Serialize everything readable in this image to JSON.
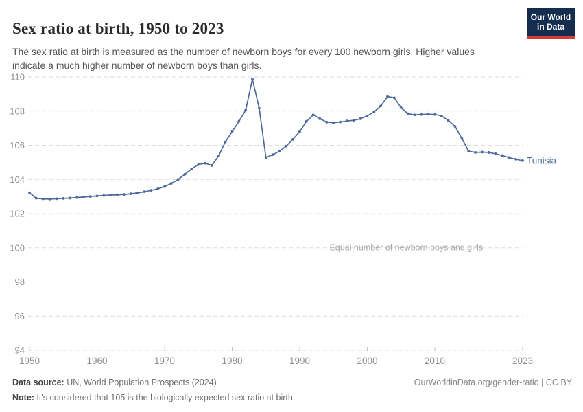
{
  "header": {
    "title": "Sex ratio at birth, 1950 to 2023",
    "subtitle": "The sex ratio at birth is measured as the number of newborn boys for every 100 newborn girls. Higher values indicate a much higher number of newborn boys than girls.",
    "logo": {
      "line1": "Our World",
      "line2": "in Data"
    }
  },
  "colors": {
    "series": "#4C6A9C",
    "logo_bg": "#152D4F",
    "logo_accent": "#D93B3B"
  },
  "chart_data": {
    "type": "line",
    "title": "Sex ratio at birth, 1950 to 2023",
    "xlabel": "",
    "ylabel": "",
    "xlim": [
      1950,
      2023
    ],
    "ylim": [
      94,
      110.5
    ],
    "x_ticks": [
      1950,
      1960,
      1970,
      1980,
      1990,
      2000,
      2010,
      2023
    ],
    "y_ticks": [
      94,
      96,
      98,
      100,
      102,
      104,
      106,
      108,
      110
    ],
    "grid": "horizontal-dashed",
    "annotation": {
      "text": "Equal number of newborn boys and girls",
      "y": 100
    },
    "legend_position": "end-of-line-label",
    "series": [
      {
        "name": "Tunisia",
        "color": "#4C6A9C",
        "x": [
          1950,
          1951,
          1952,
          1953,
          1954,
          1955,
          1956,
          1957,
          1958,
          1959,
          1960,
          1961,
          1962,
          1963,
          1964,
          1965,
          1966,
          1967,
          1968,
          1969,
          1970,
          1971,
          1972,
          1973,
          1974,
          1975,
          1976,
          1977,
          1978,
          1979,
          1980,
          1981,
          1982,
          1983,
          1984,
          1985,
          1986,
          1987,
          1988,
          1989,
          1990,
          1991,
          1992,
          1993,
          1994,
          1995,
          1996,
          1997,
          1998,
          1999,
          2000,
          2001,
          2002,
          2003,
          2004,
          2005,
          2006,
          2007,
          2008,
          2009,
          2010,
          2011,
          2012,
          2013,
          2014,
          2015,
          2016,
          2017,
          2018,
          2019,
          2020,
          2021,
          2022,
          2023
        ],
        "values": [
          103.22,
          102.9,
          102.86,
          102.85,
          102.87,
          102.89,
          102.91,
          102.94,
          102.97,
          103.0,
          103.03,
          103.06,
          103.08,
          103.1,
          103.12,
          103.16,
          103.21,
          103.28,
          103.36,
          103.45,
          103.58,
          103.77,
          104.0,
          104.3,
          104.62,
          104.87,
          104.95,
          104.82,
          105.38,
          106.2,
          106.8,
          107.4,
          108.05,
          109.87,
          108.17,
          105.28,
          105.45,
          105.65,
          105.95,
          106.35,
          106.8,
          107.4,
          107.78,
          107.55,
          107.35,
          107.32,
          107.36,
          107.42,
          107.46,
          107.55,
          107.72,
          107.95,
          108.3,
          108.85,
          108.78,
          108.2,
          107.85,
          107.78,
          107.8,
          107.82,
          107.8,
          107.72,
          107.45,
          107.1,
          106.4,
          105.65,
          105.58,
          105.6,
          105.58,
          105.5,
          105.4,
          105.28,
          105.18,
          105.1
        ]
      }
    ]
  },
  "footer": {
    "source_label": "Data source:",
    "source_text": " UN, World Population Prospects (2024)",
    "note_label": "Note:",
    "note_text": " It's considered that 105 is the biologically expected sex ratio at birth.",
    "link": "OurWorldinData.org/gender-ratio | CC BY"
  }
}
